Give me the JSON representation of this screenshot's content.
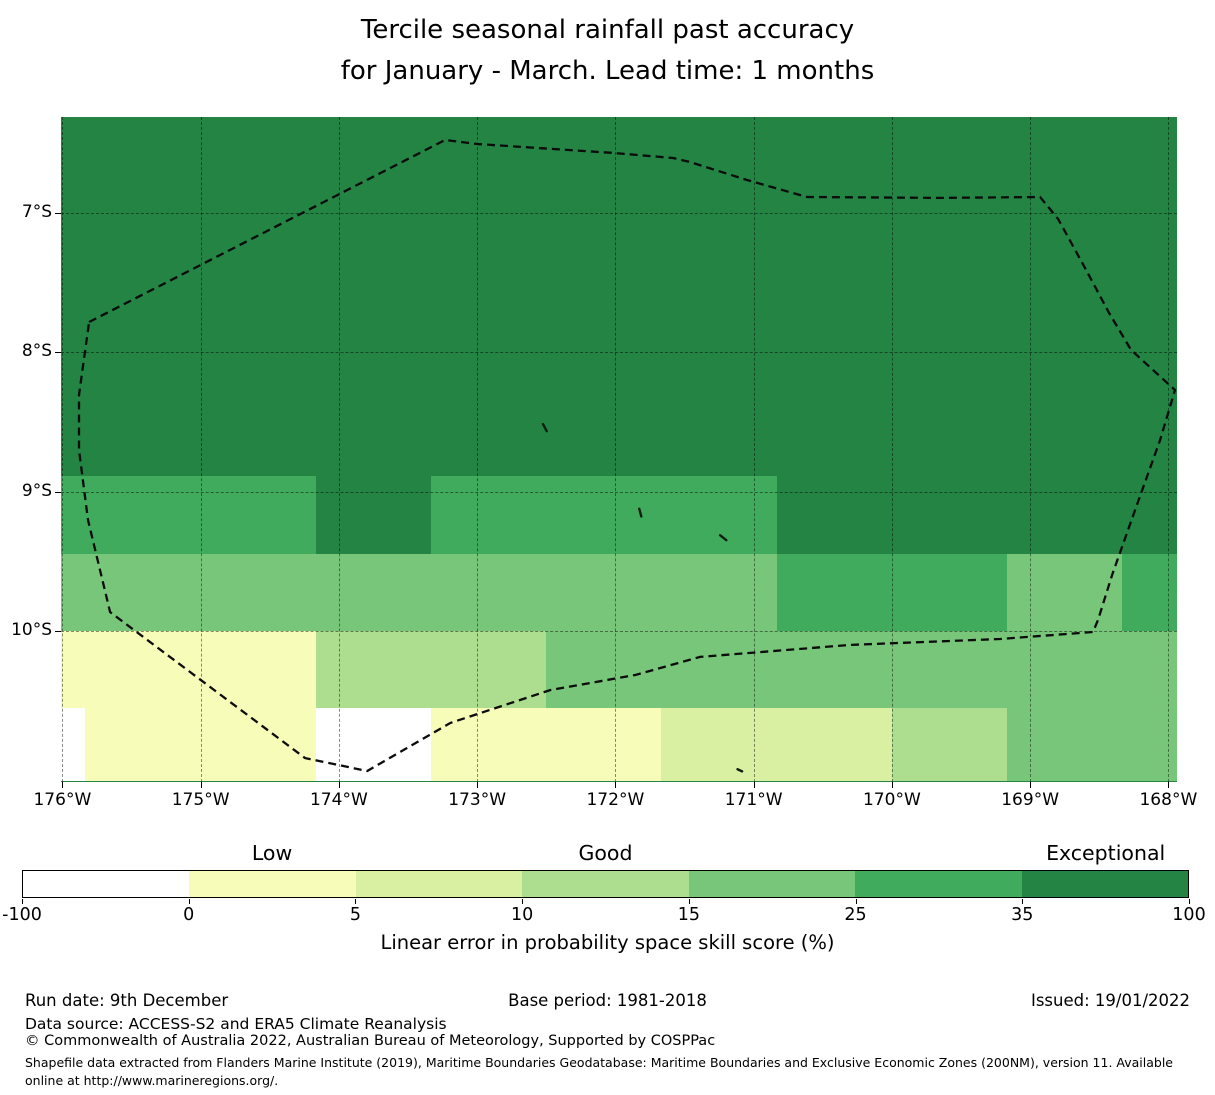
{
  "title": {
    "line1": "Tercile seasonal rainfall past accuracy",
    "line2": "for January - March. Lead time: 1 months"
  },
  "chart_data": {
    "type": "heatmap",
    "title": "Tercile seasonal rainfall past accuracy for January - March. Lead time: 1 months",
    "x_tick_labels": [
      "176°W",
      "175°W",
      "174°W",
      "173°W",
      "172°W",
      "171°W",
      "170°W",
      "169°W",
      "168°W"
    ],
    "y_tick_labels": [
      "7°S",
      "8°S",
      "9°S",
      "10°S"
    ],
    "lon_gridlines_degW": [
      176,
      175,
      174,
      173,
      172,
      171,
      170,
      169,
      168
    ],
    "lat_gridlines_degS": [
      7,
      8,
      9,
      10
    ],
    "lon_range_degW": [
      176.01,
      167.94
    ],
    "lat_range_degS": [
      6.31,
      11.08
    ],
    "bin_colors": [
      "#ffffff",
      "#f7fcb9",
      "#d9f0a3",
      "#addd8e",
      "#78c679",
      "#41ab5d",
      "#238443"
    ],
    "bin_ranges": [
      "-100–0",
      "0–5",
      "5–10",
      "10–15",
      "15–25",
      "25–35",
      "35–100"
    ],
    "grid_rows": [
      {
        "lat0": 6.31,
        "lat1": 8.889,
        "segments": [
          {
            "lon0": 176.01,
            "lon1": 167.94,
            "bin": 6
          }
        ]
      },
      {
        "lat0": 8.889,
        "lat1": 9.444,
        "segments": [
          {
            "lon0": 176.01,
            "lon1": 174.167,
            "bin": 5
          },
          {
            "lon0": 174.167,
            "lon1": 173.333,
            "bin": 6
          },
          {
            "lon0": 173.333,
            "lon1": 170.833,
            "bin": 5
          },
          {
            "lon0": 170.833,
            "lon1": 167.94,
            "bin": 6
          }
        ]
      },
      {
        "lat0": 9.444,
        "lat1": 10.0,
        "segments": [
          {
            "lon0": 176.01,
            "lon1": 170.833,
            "bin": 4
          },
          {
            "lon0": 170.833,
            "lon1": 169.167,
            "bin": 5
          },
          {
            "lon0": 169.167,
            "lon1": 168.333,
            "bin": 4
          },
          {
            "lon0": 168.333,
            "lon1": 167.94,
            "bin": 5
          }
        ]
      },
      {
        "lat0": 10.0,
        "lat1": 10.556,
        "segments": [
          {
            "lon0": 176.01,
            "lon1": 174.167,
            "bin": 1
          },
          {
            "lon0": 174.167,
            "lon1": 172.5,
            "bin": 3
          },
          {
            "lon0": 172.5,
            "lon1": 167.94,
            "bin": 4
          }
        ]
      },
      {
        "lat0": 10.556,
        "lat1": 11.08,
        "segments": [
          {
            "lon0": 176.01,
            "lon1": 175.833,
            "bin": 0
          },
          {
            "lon0": 175.833,
            "lon1": 174.167,
            "bin": 1
          },
          {
            "lon0": 174.167,
            "lon1": 173.333,
            "bin": 0
          },
          {
            "lon0": 173.333,
            "lon1": 171.667,
            "bin": 1
          },
          {
            "lon0": 171.667,
            "lon1": 170.0,
            "bin": 2
          },
          {
            "lon0": 170.0,
            "lon1": 169.167,
            "bin": 3
          },
          {
            "lon0": 169.167,
            "lon1": 167.94,
            "bin": 4
          }
        ]
      }
    ],
    "eez_boundary": [
      [
        175.807,
        7.782
      ],
      [
        173.232,
        6.475
      ],
      [
        173.001,
        6.504
      ],
      [
        172.017,
        6.568
      ],
      [
        171.583,
        6.604
      ],
      [
        171.46,
        6.633
      ],
      [
        171.048,
        6.762
      ],
      [
        170.614,
        6.884
      ],
      [
        169.652,
        6.891
      ],
      [
        168.928,
        6.884
      ],
      [
        168.798,
        7.042
      ],
      [
        168.61,
        7.38
      ],
      [
        168.429,
        7.717
      ],
      [
        168.27,
        7.983
      ],
      [
        167.952,
        8.27
      ],
      [
        168.06,
        8.629
      ],
      [
        168.241,
        9.131
      ],
      [
        168.407,
        9.598
      ],
      [
        168.509,
        9.921
      ],
      [
        168.545,
        10.007
      ],
      [
        169.217,
        10.057
      ],
      [
        170.302,
        10.1
      ],
      [
        171.387,
        10.186
      ],
      [
        171.857,
        10.316
      ],
      [
        172.472,
        10.424
      ],
      [
        173.195,
        10.66
      ],
      [
        173.795,
        11.005
      ],
      [
        174.244,
        10.912
      ],
      [
        175.655,
        9.864
      ],
      [
        175.815,
        9.203
      ],
      [
        175.88,
        8.7
      ],
      [
        175.88,
        8.306
      ],
      [
        175.807,
        7.782
      ]
    ],
    "islands": [
      {
        "lon": 172.51,
        "lat": 8.54,
        "angle": 62,
        "len": 8
      },
      {
        "lon": 171.82,
        "lat": 9.15,
        "angle": 75,
        "len": 8
      },
      {
        "lon": 171.22,
        "lat": 9.33,
        "angle": 38,
        "len": 8
      },
      {
        "lon": 171.1,
        "lat": 11.0,
        "angle": 25,
        "len": 5
      }
    ],
    "legend_position": "bottom",
    "grid_on": true
  },
  "colorbar": {
    "tick_labels": [
      "-100",
      "0",
      "5",
      "10",
      "15",
      "25",
      "35",
      "100"
    ],
    "top_labels": [
      {
        "text": "Low",
        "bin_index": 1
      },
      {
        "text": "Good",
        "bin_index": 3
      },
      {
        "text": "Exceptional",
        "bin_index": 6
      }
    ],
    "axis_label": "Linear error in probability space skill score (%)"
  },
  "footer": {
    "run_date": "Run date: 9th December",
    "base_period": "Base period: 1981-2018",
    "issued": "Issued: 19/01/2022",
    "data_source": "Data source: ACCESS-S2 and ERA5 Climate Reanalysis",
    "copyright": "© Commonwealth of Australia 2022, Australian Bureau of Meteorology, Supported by COSPPac",
    "shapefile_note": "Shapefile data extracted from Flanders Marine Institute (2019), Maritime Boundaries Geodatabase: Maritime Boundaries and Exclusive Economic Zones (200NM), version 11. Available online at http://www.marineregions.org/."
  }
}
